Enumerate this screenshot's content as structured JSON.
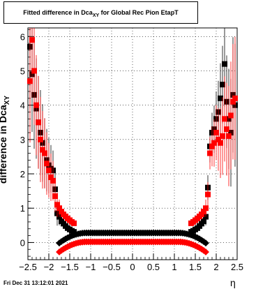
{
  "title": {
    "main": "Fitted difference in Dca",
    "sub": "XY",
    "rest": " for Global Rec Pion EtapT"
  },
  "timestamp": "Fri Dec 31 13:12:01 2021",
  "chart_data": {
    "type": "scatter",
    "ylabel_main": "difference in Dca",
    "ylabel_sub": "XY",
    "xlabel": "η",
    "xlim": [
      -2.5,
      2.5
    ],
    "ylim": [
      -0.5,
      6.25
    ],
    "grid": true,
    "xticks": [
      -2.5,
      -2,
      -1.5,
      -1,
      -0.5,
      0,
      0.5,
      1,
      1.5,
      2,
      2.5
    ],
    "xtick_labels": [
      "−2.5",
      "−2",
      "−1.5",
      "−1",
      "−0.5",
      "0",
      "0.5",
      "1",
      "1.5",
      "2",
      "2.5"
    ],
    "yticks": [
      0,
      1,
      2,
      3,
      4,
      5,
      6
    ],
    "ytick_labels": [
      "0",
      "1",
      "2",
      "3",
      "4",
      "5",
      "6"
    ],
    "series": [
      {
        "color": "#000000",
        "marker": "square",
        "x": [
          -2.45,
          -2.4,
          -2.35,
          -2.3,
          -2.25,
          -2.2,
          -2.15,
          -2.1,
          -2.05,
          -2.0,
          -1.95,
          -1.9,
          -1.85,
          -1.8,
          -1.75,
          -1.7,
          -1.65,
          -1.6,
          -1.55,
          -1.5,
          -1.45,
          -1.4,
          1.4,
          1.45,
          1.5,
          1.55,
          1.6,
          1.65,
          1.7,
          1.75,
          1.8,
          1.85,
          1.9,
          1.95,
          2.0,
          2.05,
          2.1,
          2.15,
          2.2,
          2.25,
          2.3,
          2.35,
          2.4,
          2.45
        ],
        "y": [
          5.7,
          4.9,
          4.3,
          3.9,
          3.5,
          3.2,
          2.9,
          2.6,
          2.4,
          2.25,
          2.15,
          2.1,
          1.55,
          0.85,
          0.75,
          0.62,
          0.55,
          0.48,
          0.42,
          0.38,
          0.34,
          0.31,
          0.31,
          0.34,
          0.38,
          0.42,
          0.48,
          0.55,
          0.62,
          0.75,
          1.6,
          2.8,
          3.2,
          3.3,
          3.6,
          3.8,
          4.2,
          4.6,
          5.2,
          4.1,
          3.6,
          3.2,
          4.3,
          4.0
        ]
      },
      {
        "color": "#ff0000",
        "marker": "square",
        "x": [
          -2.45,
          -2.4,
          -2.35,
          -2.3,
          -2.25,
          -2.2,
          -2.15,
          -2.1,
          -2.05,
          -2.0,
          -1.95,
          -1.9,
          -1.85,
          -1.8,
          -1.75,
          -1.7,
          -1.65,
          -1.6,
          -1.55,
          -1.5,
          -1.45,
          -1.4,
          1.4,
          1.45,
          1.5,
          1.55,
          1.6,
          1.65,
          1.7,
          1.75,
          1.8,
          1.85,
          1.9,
          1.95,
          2.0,
          2.05,
          2.1,
          2.15,
          2.2,
          2.25,
          2.3,
          2.35,
          2.4,
          2.45
        ],
        "y": [
          4.7,
          5.9,
          5.0,
          4.0,
          3.5,
          3.0,
          2.7,
          2.6,
          2.3,
          2.1,
          1.9,
          1.8,
          1.35,
          1.1,
          1.0,
          0.9,
          0.82,
          0.76,
          0.7,
          0.65,
          0.6,
          0.56,
          0.56,
          0.6,
          0.65,
          0.7,
          0.76,
          0.82,
          0.9,
          1.0,
          1.4,
          2.6,
          2.8,
          2.9,
          3.2,
          3.0,
          2.9,
          3.1,
          3.6,
          3.3,
          3.1,
          3.7,
          4.1,
          4.2
        ]
      }
    ],
    "lower_band": {
      "black_plateau": 0.28,
      "red_plateau": 0.02
    }
  }
}
